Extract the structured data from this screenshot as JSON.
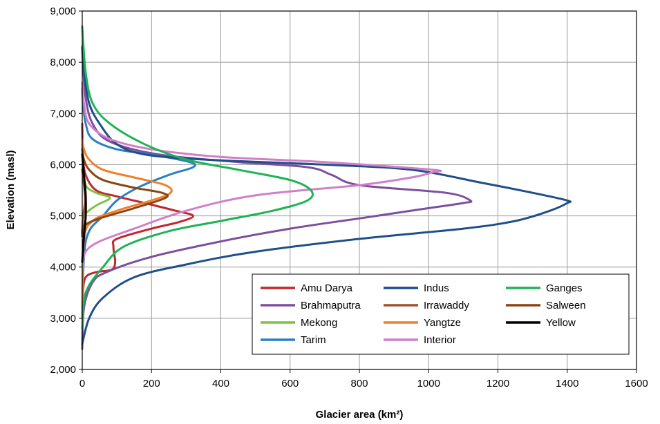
{
  "chart_data": {
    "type": "line",
    "xlabel": "Glacier area (km²)",
    "ylabel": "Elevation (masl)",
    "xlim": [
      0,
      1600
    ],
    "ylim": [
      2000,
      9000
    ],
    "x_ticks": [
      0,
      200,
      400,
      600,
      800,
      1000,
      1200,
      1400,
      1600
    ],
    "x_tick_labels": [
      "0",
      "200",
      "400",
      "600",
      "800",
      "1000",
      "1200",
      "1400",
      "1600"
    ],
    "y_ticks": [
      2000,
      3000,
      4000,
      5000,
      6000,
      7000,
      8000,
      9000
    ],
    "y_tick_labels": [
      "2,000",
      "3,000",
      "4,000",
      "5,000",
      "6,000",
      "7,000",
      "8,000",
      "9,000"
    ],
    "grid": true,
    "legend_position": "bottom-right",
    "series": [
      {
        "name": "Amu Darya",
        "color": "#c0272d",
        "points": [
          [
            0,
            3000
          ],
          [
            2,
            3500
          ],
          [
            10,
            3800
          ],
          [
            40,
            3900
          ],
          [
            85,
            3950
          ],
          [
            95,
            4100
          ],
          [
            90,
            4400
          ],
          [
            100,
            4550
          ],
          [
            200,
            4750
          ],
          [
            280,
            4880
          ],
          [
            320,
            5000
          ],
          [
            270,
            5100
          ],
          [
            180,
            5250
          ],
          [
            100,
            5380
          ],
          [
            40,
            5500
          ],
          [
            10,
            5800
          ],
          [
            2,
            6200
          ],
          [
            0,
            6800
          ]
        ]
      },
      {
        "name": "Brahmaputra",
        "color": "#7b4f9e",
        "points": [
          [
            0,
            2400
          ],
          [
            5,
            3200
          ],
          [
            30,
            3700
          ],
          [
            70,
            3900
          ],
          [
            200,
            4200
          ],
          [
            400,
            4500
          ],
          [
            600,
            4750
          ],
          [
            800,
            4950
          ],
          [
            1000,
            5150
          ],
          [
            1100,
            5250
          ],
          [
            1120,
            5300
          ],
          [
            1050,
            5450
          ],
          [
            800,
            5600
          ],
          [
            720,
            5800
          ],
          [
            650,
            5950
          ],
          [
            450,
            6050
          ],
          [
            220,
            6200
          ],
          [
            80,
            6450
          ],
          [
            30,
            6800
          ],
          [
            10,
            7300
          ],
          [
            2,
            8000
          ],
          [
            0,
            8300
          ]
        ]
      },
      {
        "name": "Mekong",
        "color": "#7dc341",
        "points": [
          [
            0,
            4700
          ],
          [
            5,
            5000
          ],
          [
            40,
            5200
          ],
          [
            80,
            5350
          ],
          [
            40,
            5450
          ],
          [
            10,
            5600
          ],
          [
            2,
            6000
          ],
          [
            0,
            6400
          ]
        ]
      },
      {
        "name": "Tarim",
        "color": "#2a7fc1",
        "points": [
          [
            0,
            3000
          ],
          [
            5,
            4200
          ],
          [
            20,
            4700
          ],
          [
            60,
            5000
          ],
          [
            100,
            5300
          ],
          [
            160,
            5550
          ],
          [
            250,
            5800
          ],
          [
            320,
            5950
          ],
          [
            310,
            6050
          ],
          [
            200,
            6200
          ],
          [
            100,
            6300
          ],
          [
            30,
            6500
          ],
          [
            10,
            6800
          ],
          [
            2,
            7200
          ],
          [
            0,
            7500
          ]
        ]
      },
      {
        "name": "Indus",
        "color": "#1f4e8a",
        "points": [
          [
            0,
            2500
          ],
          [
            20,
            3000
          ],
          [
            60,
            3400
          ],
          [
            150,
            3800
          ],
          [
            300,
            4050
          ],
          [
            500,
            4300
          ],
          [
            800,
            4550
          ],
          [
            1100,
            4750
          ],
          [
            1250,
            4900
          ],
          [
            1350,
            5100
          ],
          [
            1400,
            5250
          ],
          [
            1400,
            5300
          ],
          [
            1300,
            5450
          ],
          [
            1150,
            5650
          ],
          [
            950,
            5900
          ],
          [
            700,
            6000
          ],
          [
            350,
            6100
          ],
          [
            180,
            6200
          ],
          [
            100,
            6400
          ],
          [
            50,
            6800
          ],
          [
            20,
            7200
          ],
          [
            5,
            7800
          ],
          [
            0,
            8300
          ]
        ]
      },
      {
        "name": "Irrawaddy",
        "color": "#a0522d",
        "points": [
          [
            0,
            4600
          ],
          [
            3,
            5000
          ],
          [
            8,
            5300
          ],
          [
            5,
            5600
          ],
          [
            0,
            5900
          ]
        ]
      },
      {
        "name": "Yangtze",
        "color": "#f07f2b",
        "points": [
          [
            0,
            3000
          ],
          [
            5,
            4500
          ],
          [
            30,
            4900
          ],
          [
            100,
            5100
          ],
          [
            200,
            5300
          ],
          [
            255,
            5450
          ],
          [
            240,
            5600
          ],
          [
            150,
            5750
          ],
          [
            60,
            5900
          ],
          [
            20,
            6100
          ],
          [
            5,
            6300
          ],
          [
            0,
            6500
          ]
        ]
      },
      {
        "name": "Interior",
        "color": "#d07fc6",
        "points": [
          [
            0,
            4000
          ],
          [
            10,
            4300
          ],
          [
            50,
            4500
          ],
          [
            150,
            4750
          ],
          [
            300,
            5100
          ],
          [
            500,
            5400
          ],
          [
            800,
            5600
          ],
          [
            950,
            5750
          ],
          [
            1010,
            5850
          ],
          [
            1010,
            5900
          ],
          [
            700,
            6050
          ],
          [
            400,
            6150
          ],
          [
            200,
            6300
          ],
          [
            80,
            6500
          ],
          [
            20,
            6800
          ],
          [
            5,
            7200
          ],
          [
            0,
            7600
          ]
        ]
      },
      {
        "name": "Ganges",
        "color": "#1db355",
        "points": [
          [
            0,
            2800
          ],
          [
            10,
            3500
          ],
          [
            60,
            4000
          ],
          [
            120,
            4400
          ],
          [
            250,
            4700
          ],
          [
            400,
            4900
          ],
          [
            550,
            5100
          ],
          [
            650,
            5300
          ],
          [
            660,
            5500
          ],
          [
            600,
            5700
          ],
          [
            450,
            5900
          ],
          [
            300,
            6100
          ],
          [
            180,
            6400
          ],
          [
            80,
            6800
          ],
          [
            30,
            7200
          ],
          [
            10,
            7800
          ],
          [
            0,
            8700
          ]
        ]
      },
      {
        "name": "Salween",
        "color": "#8b4513",
        "points": [
          [
            0,
            4600
          ],
          [
            5,
            4800
          ],
          [
            50,
            4950
          ],
          [
            150,
            5150
          ],
          [
            240,
            5350
          ],
          [
            230,
            5450
          ],
          [
            150,
            5550
          ],
          [
            60,
            5700
          ],
          [
            20,
            5900
          ],
          [
            5,
            6100
          ],
          [
            0,
            6300
          ]
        ]
      },
      {
        "name": "Yellow",
        "color": "#000000",
        "points": [
          [
            0,
            4100
          ],
          [
            5,
            4600
          ],
          [
            10,
            5000
          ],
          [
            10,
            5400
          ],
          [
            5,
            5800
          ],
          [
            0,
            6200
          ]
        ]
      }
    ]
  }
}
